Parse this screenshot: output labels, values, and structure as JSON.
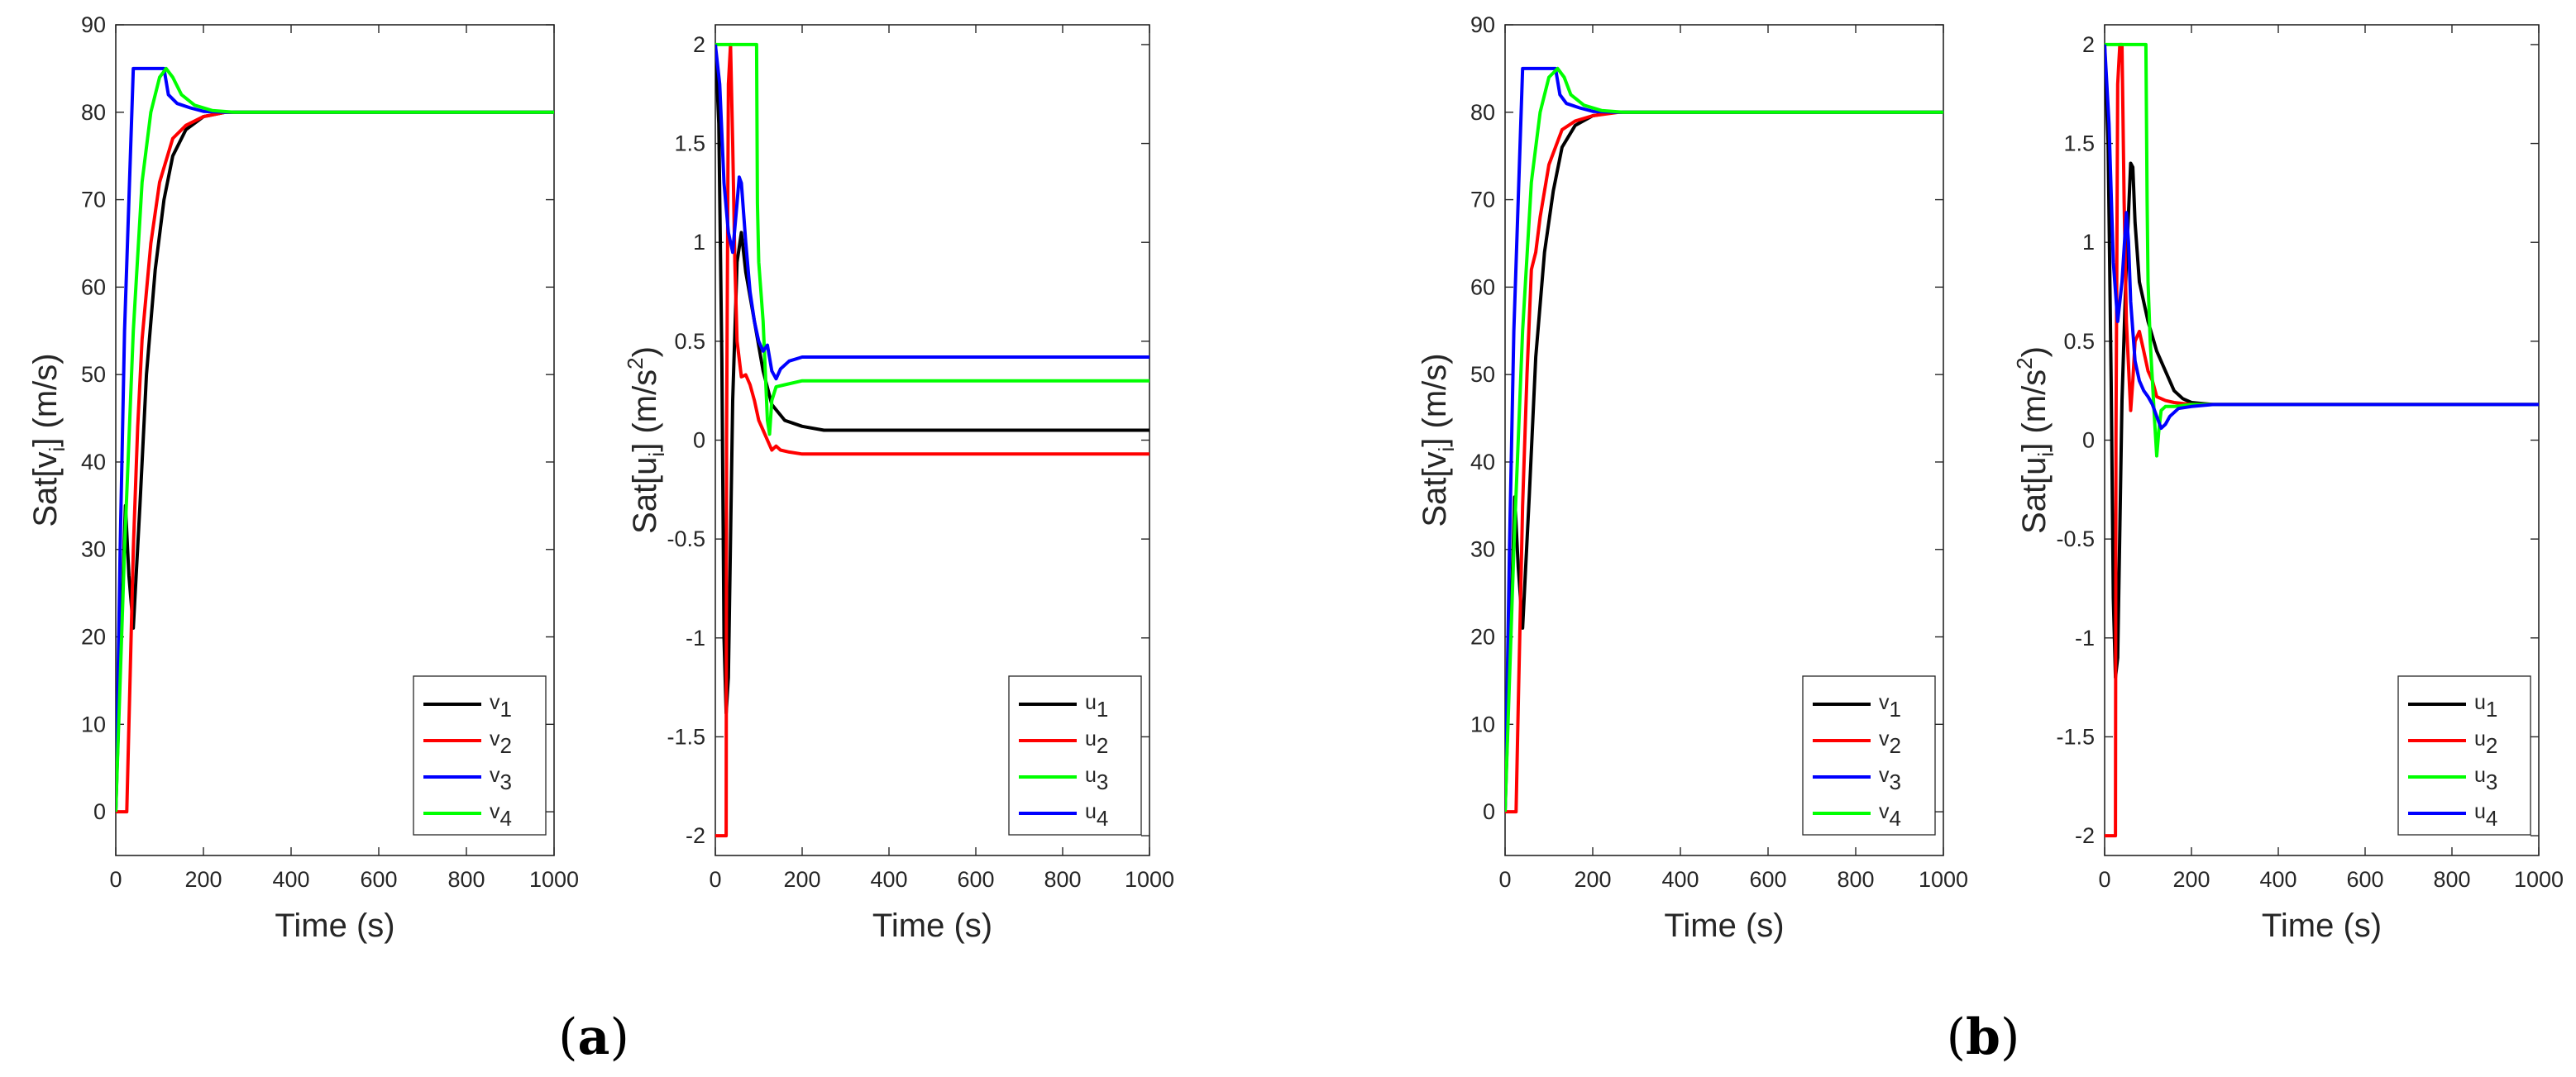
{
  "panels": [
    {
      "caption": {
        "open": "(",
        "letter": "a",
        "close": ")"
      }
    },
    {
      "caption": {
        "open": "(",
        "letter": "b",
        "close": ")"
      }
    }
  ],
  "chart_data": [
    {
      "type": "line",
      "panel": "a",
      "xlabel": "Time (s)",
      "ylabel": {
        "main": "Sat[v",
        "sub": "i",
        "rest": "] (m/s)"
      },
      "xlim": [
        0,
        1000
      ],
      "ylim": [
        -5,
        90
      ],
      "xticks": [
        0,
        200,
        400,
        600,
        800,
        1000
      ],
      "yticks": [
        0,
        10,
        20,
        30,
        40,
        50,
        60,
        70,
        80,
        90
      ],
      "legend": "bottom-right",
      "series": [
        {
          "name": "v",
          "sub": "1",
          "color": "#000000",
          "x": [
            0,
            12,
            22,
            30,
            40,
            55,
            70,
            90,
            110,
            130,
            160,
            200,
            250,
            300,
            1000
          ],
          "y": [
            0,
            20,
            35,
            27,
            21,
            35,
            50,
            62,
            70,
            75,
            78,
            79.5,
            80,
            80,
            80
          ]
        },
        {
          "name": "v",
          "sub": "2",
          "color": "#ff0000",
          "x": [
            0,
            25,
            30,
            40,
            50,
            60,
            80,
            100,
            130,
            160,
            200,
            250,
            300,
            1000
          ],
          "y": [
            0,
            0,
            10,
            30,
            44,
            54,
            65,
            72,
            77,
            78.5,
            79.5,
            80,
            80,
            80
          ]
        },
        {
          "name": "v",
          "sub": "3",
          "color": "#0000ff",
          "x": [
            0,
            10,
            20,
            30,
            40,
            50,
            110,
            120,
            140,
            170,
            200,
            250,
            1000
          ],
          "y": [
            0,
            30,
            55,
            70,
            85,
            85,
            85,
            82,
            81,
            80.5,
            80.1,
            80,
            80
          ]
        },
        {
          "name": "v",
          "sub": "4",
          "color": "#00ff00",
          "x": [
            0,
            20,
            40,
            60,
            80,
            100,
            115,
            130,
            150,
            180,
            220,
            270,
            1000
          ],
          "y": [
            0,
            30,
            55,
            72,
            80,
            84,
            85,
            84,
            82,
            80.8,
            80.2,
            80,
            80
          ]
        }
      ]
    },
    {
      "type": "line",
      "panel": "a",
      "xlabel": "Time (s)",
      "ylabel": {
        "main": "Sat[u",
        "sub": "i",
        "rest": "] (m/s",
        "sup": "2",
        "end": ")"
      },
      "xlim": [
        0,
        1000
      ],
      "ylim": [
        -2.1,
        2.1
      ],
      "xticks": [
        0,
        200,
        400,
        600,
        800,
        1000
      ],
      "yticks": [
        -2,
        -1.5,
        -1,
        -0.5,
        0,
        0.5,
        1,
        1.5,
        2
      ],
      "legend": "bottom-right",
      "series": [
        {
          "name": "u",
          "sub": "1",
          "color": "#000000",
          "x": [
            0,
            8,
            15,
            20,
            25,
            30,
            40,
            50,
            60,
            70,
            90,
            110,
            130,
            160,
            200,
            250,
            300,
            1000
          ],
          "y": [
            2,
            1.6,
            0.4,
            -1,
            -1.38,
            -1.2,
            0.2,
            0.9,
            1.05,
            0.85,
            0.6,
            0.35,
            0.18,
            0.1,
            0.07,
            0.05,
            0.05,
            0.05
          ]
        },
        {
          "name": "u",
          "sub": "2",
          "color": "#ff0000",
          "x": [
            0,
            25,
            26,
            30,
            35,
            40,
            45,
            50,
            60,
            70,
            80,
            90,
            100,
            110,
            120,
            130,
            140,
            150,
            170,
            200,
            250,
            300,
            1000
          ],
          "y": [
            -2,
            -2,
            0,
            1.8,
            2,
            1.5,
            0.9,
            0.5,
            0.32,
            0.33,
            0.28,
            0.2,
            0.1,
            0.05,
            0,
            -0.05,
            -0.03,
            -0.05,
            -0.06,
            -0.07,
            -0.07,
            -0.07,
            -0.07
          ]
        },
        {
          "name": "u",
          "sub": "3",
          "color": "#00ff00",
          "x": [
            0,
            5,
            95,
            97,
            100,
            110,
            120,
            125,
            130,
            140,
            160,
            200,
            250,
            1000
          ],
          "y": [
            2,
            2,
            2,
            1.2,
            0.9,
            0.6,
            0.1,
            0.03,
            0.2,
            0.27,
            0.28,
            0.3,
            0.3,
            0.3
          ]
        },
        {
          "name": "u",
          "sub": "4",
          "color": "#0000ff",
          "x": [
            0,
            10,
            20,
            30,
            40,
            50,
            55,
            60,
            70,
            80,
            90,
            100,
            110,
            120,
            130,
            140,
            150,
            170,
            200,
            250,
            1000
          ],
          "y": [
            2,
            1.8,
            1.3,
            1.05,
            0.95,
            1.2,
            1.33,
            1.3,
            1.0,
            0.75,
            0.6,
            0.5,
            0.45,
            0.48,
            0.35,
            0.31,
            0.36,
            0.4,
            0.42,
            0.42,
            0.42
          ]
        }
      ]
    },
    {
      "type": "line",
      "panel": "b",
      "xlabel": "Time (s)",
      "ylabel": {
        "main": "Sat[v",
        "sub": "i",
        "rest": "] (m/s)"
      },
      "xlim": [
        0,
        1000
      ],
      "ylim": [
        -5,
        90
      ],
      "xticks": [
        0,
        200,
        400,
        600,
        800,
        1000
      ],
      "yticks": [
        0,
        10,
        20,
        30,
        40,
        50,
        60,
        70,
        80,
        90
      ],
      "legend": "bottom-right",
      "series": [
        {
          "name": "v",
          "sub": "1",
          "color": "#000000",
          "x": [
            0,
            12,
            22,
            30,
            40,
            55,
            70,
            90,
            110,
            130,
            160,
            200,
            250,
            300,
            1000
          ],
          "y": [
            0,
            20,
            36,
            28,
            21,
            36,
            52,
            64,
            71,
            76,
            78.5,
            79.6,
            80,
            80,
            80
          ]
        },
        {
          "name": "v",
          "sub": "2",
          "color": "#ff0000",
          "x": [
            0,
            25,
            30,
            40,
            50,
            60,
            70,
            80,
            100,
            130,
            160,
            200,
            260,
            1000
          ],
          "y": [
            0,
            0,
            12,
            35,
            50,
            62,
            64,
            68,
            74,
            78,
            79,
            79.6,
            80,
            80
          ]
        },
        {
          "name": "v",
          "sub": "3",
          "color": "#0000ff",
          "x": [
            0,
            10,
            20,
            30,
            40,
            50,
            115,
            125,
            140,
            170,
            200,
            250,
            1000
          ],
          "y": [
            0,
            30,
            55,
            70,
            85,
            85,
            85,
            82,
            81,
            80.5,
            80.1,
            80,
            80
          ]
        },
        {
          "name": "v",
          "sub": "4",
          "color": "#00ff00",
          "x": [
            0,
            20,
            40,
            60,
            80,
            100,
            120,
            135,
            150,
            180,
            220,
            270,
            1000
          ],
          "y": [
            0,
            30,
            55,
            72,
            80,
            84,
            85,
            84,
            82,
            80.8,
            80.2,
            80,
            80
          ]
        }
      ]
    },
    {
      "type": "line",
      "panel": "b",
      "xlabel": "Time (s)",
      "ylabel": {
        "main": "Sat[u",
        "sub": "i",
        "rest": "] (m/s",
        "sup": "2",
        "end": ")"
      },
      "xlim": [
        0,
        1000
      ],
      "ylim": [
        -2.1,
        2.1
      ],
      "xticks": [
        0,
        200,
        400,
        600,
        800,
        1000
      ],
      "yticks": [
        -2,
        -1.5,
        -1,
        -0.5,
        0,
        0.5,
        1,
        1.5,
        2
      ],
      "legend": "bottom-right",
      "series": [
        {
          "name": "u",
          "sub": "1",
          "color": "#000000",
          "x": [
            0,
            8,
            15,
            20,
            25,
            30,
            40,
            50,
            60,
            65,
            70,
            80,
            100,
            120,
            140,
            160,
            180,
            200,
            250,
            300,
            1000
          ],
          "y": [
            2,
            1.5,
            0.3,
            -0.8,
            -1.2,
            -1.1,
            0.2,
            0.9,
            1.4,
            1.38,
            1.1,
            0.8,
            0.6,
            0.45,
            0.35,
            0.25,
            0.21,
            0.19,
            0.18,
            0.18,
            0.18
          ]
        },
        {
          "name": "u",
          "sub": "2",
          "color": "#ff0000",
          "x": [
            0,
            25,
            26,
            30,
            35,
            40,
            45,
            50,
            60,
            65,
            70,
            80,
            90,
            100,
            110,
            120,
            140,
            160,
            200,
            250,
            300,
            1000
          ],
          "y": [
            -2,
            -2,
            0,
            1.8,
            2,
            2,
            1.2,
            0.6,
            0.15,
            0.3,
            0.5,
            0.55,
            0.45,
            0.35,
            0.3,
            0.22,
            0.2,
            0.19,
            0.18,
            0.18,
            0.18,
            0.18
          ]
        },
        {
          "name": "u",
          "sub": "3",
          "color": "#00ff00",
          "x": [
            0,
            5,
            95,
            98,
            100,
            105,
            110,
            115,
            120,
            125,
            130,
            140,
            160,
            200,
            250,
            1000
          ],
          "y": [
            2,
            2,
            2,
            1.2,
            0.8,
            0.5,
            0.3,
            0.1,
            -0.08,
            0.05,
            0.15,
            0.17,
            0.17,
            0.18,
            0.18,
            0.18
          ]
        },
        {
          "name": "u",
          "sub": "4",
          "color": "#0000ff",
          "x": [
            0,
            10,
            20,
            30,
            40,
            50,
            55,
            60,
            70,
            80,
            90,
            100,
            110,
            120,
            130,
            140,
            150,
            170,
            200,
            250,
            1000
          ],
          "y": [
            2,
            1.6,
            0.9,
            0.6,
            0.8,
            1.15,
            1.0,
            0.7,
            0.4,
            0.3,
            0.25,
            0.22,
            0.18,
            0.12,
            0.06,
            0.08,
            0.12,
            0.16,
            0.17,
            0.18,
            0.18
          ]
        }
      ]
    }
  ]
}
